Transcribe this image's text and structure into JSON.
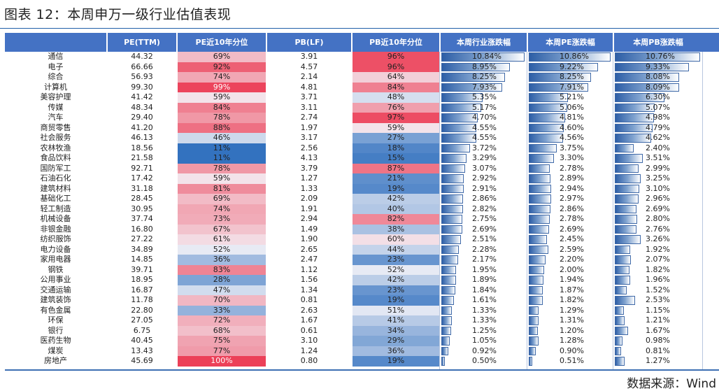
{
  "title": "图表 12：本周申万一级行业估值表现",
  "source": "数据来源：Wind",
  "table": {
    "headers": [
      "",
      "PE(TTM)",
      "PE近10年分位",
      "PB(LF)",
      "PB近10年分位",
      "本周行业涨跌幅",
      "本周PE涨跌幅",
      "本周PB涨跌幅"
    ],
    "rows": [
      {
        "industry": "通信",
        "pe": "44.32",
        "pe_pct": "69%",
        "pb": "3.91",
        "pb_pct": "96%",
        "chg": "10.84%",
        "pe_chg": "10.86%",
        "pb_chg": "10.76%"
      },
      {
        "industry": "电子",
        "pe": "66.66",
        "pe_pct": "92%",
        "pb": "4.57",
        "pb_pct": "96%",
        "chg": "8.95%",
        "pe_chg": "9.22%",
        "pb_chg": "9.33%"
      },
      {
        "industry": "综合",
        "pe": "56.93",
        "pe_pct": "74%",
        "pb": "2.14",
        "pb_pct": "64%",
        "chg": "8.25%",
        "pe_chg": "8.25%",
        "pb_chg": "8.08%"
      },
      {
        "industry": "计算机",
        "pe": "99.30",
        "pe_pct": "99%",
        "pb": "4.81",
        "pb_pct": "84%",
        "chg": "7.93%",
        "pe_chg": "7.91%",
        "pb_chg": "8.09%"
      },
      {
        "industry": "美容护理",
        "pe": "41.42",
        "pe_pct": "59%",
        "pb": "3.71",
        "pb_pct": "48%",
        "chg": "5.35%",
        "pe_chg": "5.21%",
        "pb_chg": "6.30%"
      },
      {
        "industry": "传媒",
        "pe": "48.34",
        "pe_pct": "84%",
        "pb": "3.11",
        "pb_pct": "76%",
        "chg": "5.17%",
        "pe_chg": "5.06%",
        "pb_chg": "5.07%"
      },
      {
        "industry": "汽车",
        "pe": "29.40",
        "pe_pct": "78%",
        "pb": "2.74",
        "pb_pct": "97%",
        "chg": "4.70%",
        "pe_chg": "4.81%",
        "pb_chg": "4.98%"
      },
      {
        "industry": "商贸零售",
        "pe": "41.20",
        "pe_pct": "88%",
        "pb": "1.97",
        "pb_pct": "59%",
        "chg": "4.55%",
        "pe_chg": "4.60%",
        "pb_chg": "4.79%"
      },
      {
        "industry": "社会服务",
        "pe": "46.13",
        "pe_pct": "46%",
        "pb": "3.17",
        "pb_pct": "27%",
        "chg": "4.55%",
        "pe_chg": "4.56%",
        "pb_chg": "4.62%"
      },
      {
        "industry": "农林牧渔",
        "pe": "18.56",
        "pe_pct": "11%",
        "pb": "2.56",
        "pb_pct": "18%",
        "chg": "3.72%",
        "pe_chg": "3.75%",
        "pb_chg": "2.40%"
      },
      {
        "industry": "食品饮料",
        "pe": "21.58",
        "pe_pct": "11%",
        "pb": "4.13",
        "pb_pct": "15%",
        "chg": "3.29%",
        "pe_chg": "3.30%",
        "pb_chg": "3.51%"
      },
      {
        "industry": "国防军工",
        "pe": "92.71",
        "pe_pct": "78%",
        "pb": "3.79",
        "pb_pct": "87%",
        "chg": "3.07%",
        "pe_chg": "2.78%",
        "pb_chg": "2.99%"
      },
      {
        "industry": "石油石化",
        "pe": "17.42",
        "pe_pct": "59%",
        "pb": "1.27",
        "pb_pct": "21%",
        "chg": "2.92%",
        "pe_chg": "2.89%",
        "pb_chg": "3.25%"
      },
      {
        "industry": "建筑材料",
        "pe": "31.18",
        "pe_pct": "81%",
        "pb": "1.33",
        "pb_pct": "19%",
        "chg": "2.91%",
        "pe_chg": "2.94%",
        "pb_chg": "3.10%"
      },
      {
        "industry": "基础化工",
        "pe": "28.45",
        "pe_pct": "69%",
        "pb": "2.09",
        "pb_pct": "42%",
        "chg": "2.86%",
        "pe_chg": "2.97%",
        "pb_chg": "2.96%"
      },
      {
        "industry": "轻工制造",
        "pe": "30.95",
        "pe_pct": "74%",
        "pb": "1.91",
        "pb_pct": "40%",
        "chg": "2.82%",
        "pe_chg": "2.86%",
        "pb_chg": "2.69%"
      },
      {
        "industry": "机械设备",
        "pe": "37.74",
        "pe_pct": "73%",
        "pb": "2.94",
        "pb_pct": "82%",
        "chg": "2.75%",
        "pe_chg": "2.78%",
        "pb_chg": "2.80%"
      },
      {
        "industry": "非银金融",
        "pe": "16.80",
        "pe_pct": "67%",
        "pb": "1.49",
        "pb_pct": "38%",
        "chg": "2.69%",
        "pe_chg": "2.69%",
        "pb_chg": "2.76%"
      },
      {
        "industry": "纺织服饰",
        "pe": "27.22",
        "pe_pct": "61%",
        "pb": "1.90",
        "pb_pct": "60%",
        "chg": "2.51%",
        "pe_chg": "2.45%",
        "pb_chg": "3.26%"
      },
      {
        "industry": "电力设备",
        "pe": "34.89",
        "pe_pct": "52%",
        "pb": "2.65",
        "pb_pct": "44%",
        "chg": "2.28%",
        "pe_chg": "2.59%",
        "pb_chg": "1.92%"
      },
      {
        "industry": "家用电器",
        "pe": "14.85",
        "pe_pct": "36%",
        "pb": "2.47",
        "pb_pct": "23%",
        "chg": "2.17%",
        "pe_chg": "2.20%",
        "pb_chg": "2.07%"
      },
      {
        "industry": "钢铁",
        "pe": "39.71",
        "pe_pct": "83%",
        "pb": "1.12",
        "pb_pct": "52%",
        "chg": "1.95%",
        "pe_chg": "2.00%",
        "pb_chg": "1.82%"
      },
      {
        "industry": "公用事业",
        "pe": "18.95",
        "pe_pct": "28%",
        "pb": "1.56",
        "pb_pct": "42%",
        "chg": "1.89%",
        "pe_chg": "1.94%",
        "pb_chg": "1.96%"
      },
      {
        "industry": "交通运输",
        "pe": "16.87",
        "pe_pct": "47%",
        "pb": "1.34",
        "pb_pct": "23%",
        "chg": "1.84%",
        "pe_chg": "1.87%",
        "pb_chg": "1.52%"
      },
      {
        "industry": "建筑装饰",
        "pe": "11.78",
        "pe_pct": "70%",
        "pb": "0.81",
        "pb_pct": "19%",
        "chg": "1.61%",
        "pe_chg": "1.82%",
        "pb_chg": "2.53%"
      },
      {
        "industry": "有色金属",
        "pe": "22.80",
        "pe_pct": "33%",
        "pb": "2.63",
        "pb_pct": "51%",
        "chg": "1.33%",
        "pe_chg": "1.29%",
        "pb_chg": "1.15%"
      },
      {
        "industry": "环保",
        "pe": "27.05",
        "pe_pct": "72%",
        "pb": "1.67",
        "pb_pct": "41%",
        "chg": "1.33%",
        "pe_chg": "1.31%",
        "pb_chg": "1.21%"
      },
      {
        "industry": "银行",
        "pe": "6.75",
        "pe_pct": "68%",
        "pb": "0.61",
        "pb_pct": "34%",
        "chg": "1.25%",
        "pe_chg": "1.20%",
        "pb_chg": "1.67%"
      },
      {
        "industry": "医药生物",
        "pe": "40.45",
        "pe_pct": "75%",
        "pb": "3.10",
        "pb_pct": "29%",
        "chg": "1.05%",
        "pe_chg": "1.28%",
        "pb_chg": "0.98%"
      },
      {
        "industry": "煤炭",
        "pe": "13.43",
        "pe_pct": "77%",
        "pb": "1.24",
        "pb_pct": "36%",
        "chg": "0.92%",
        "pe_chg": "0.90%",
        "pb_chg": "0.81%"
      },
      {
        "industry": "房地产",
        "pe": "45.69",
        "pe_pct": "100%",
        "pb": "0.80",
        "pb_pct": "19%",
        "chg": "0.50%",
        "pe_chg": "0.51%",
        "pb_chg": "1.27%"
      }
    ]
  }
}
